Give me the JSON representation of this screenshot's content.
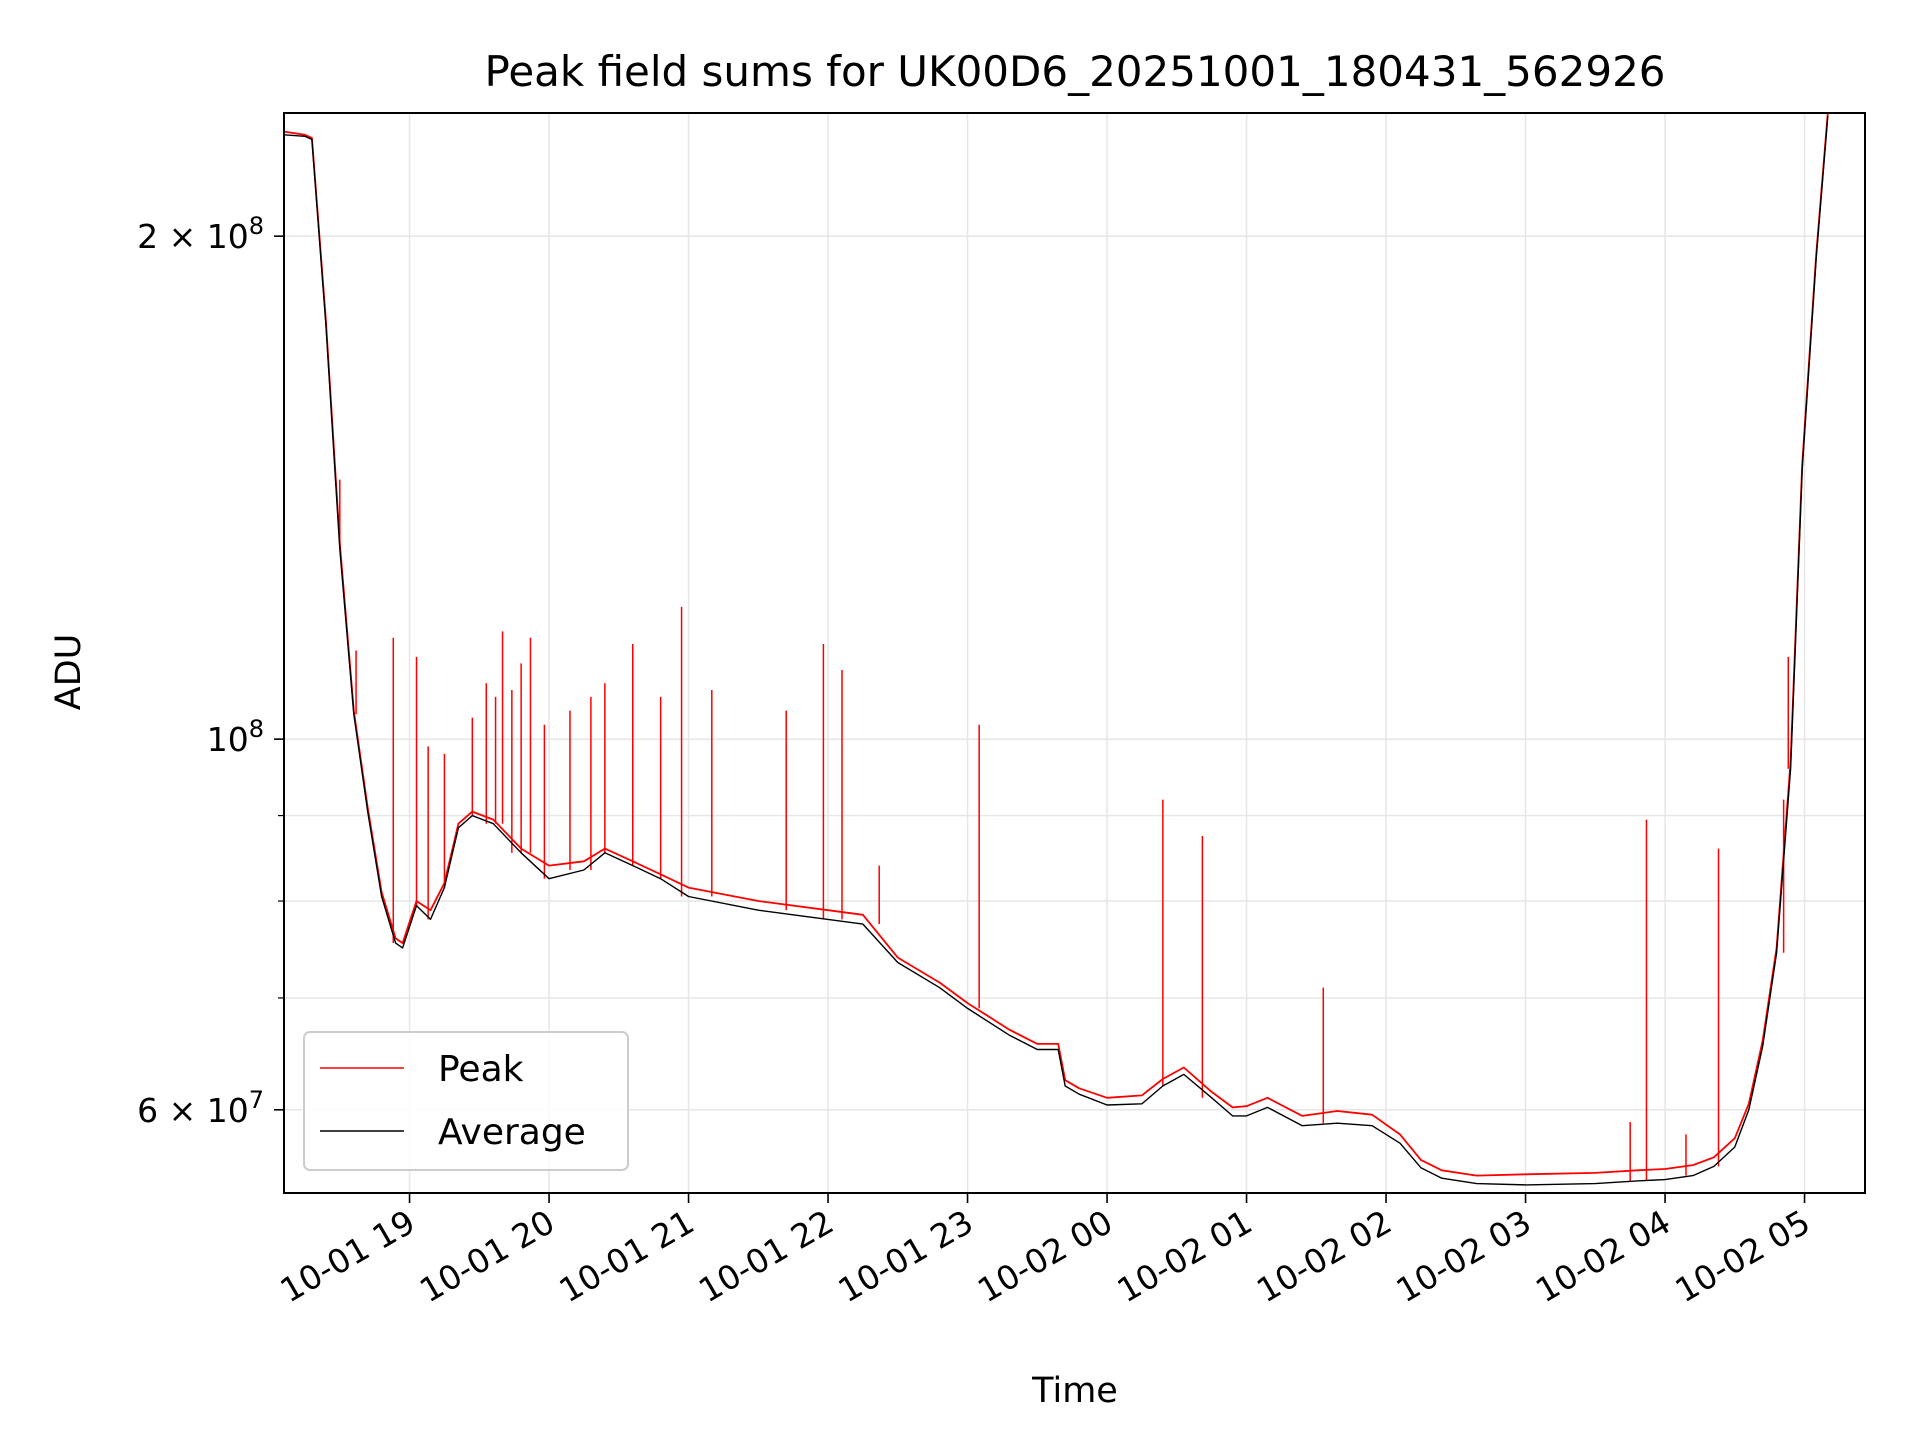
{
  "chart_data": {
    "type": "line",
    "title": "Peak field sums for UK00D6_20251001_180431_562926",
    "xlabel": "Time",
    "ylabel": "ADU",
    "y_scale": "log",
    "xlim": [
      "2025-10-01T18:06",
      "2025-10-02T05:26"
    ],
    "ylim": [
      53500000,
      237000000
    ],
    "grid": true,
    "legend": "lower-left",
    "x_ticks": [
      {
        "t": "2025-10-01T19:00",
        "label": "10-01 19"
      },
      {
        "t": "2025-10-01T20:00",
        "label": "10-01 20"
      },
      {
        "t": "2025-10-01T21:00",
        "label": "10-01 21"
      },
      {
        "t": "2025-10-01T22:00",
        "label": "10-01 22"
      },
      {
        "t": "2025-10-01T23:00",
        "label": "10-01 23"
      },
      {
        "t": "2025-10-02T00:00",
        "label": "10-02 00"
      },
      {
        "t": "2025-10-02T01:00",
        "label": "10-02 01"
      },
      {
        "t": "2025-10-02T02:00",
        "label": "10-02 02"
      },
      {
        "t": "2025-10-02T03:00",
        "label": "10-02 03"
      },
      {
        "t": "2025-10-02T04:00",
        "label": "10-02 04"
      },
      {
        "t": "2025-10-02T05:00",
        "label": "10-02 05"
      }
    ],
    "y_ticks": [
      {
        "value": 60000000,
        "label": "6 × 10^7"
      },
      {
        "value": 100000000,
        "label": "10^8"
      },
      {
        "value": 200000000,
        "label": "2 × 10^8"
      }
    ],
    "y_minor_ticks": [
      70000000,
      80000000,
      90000000
    ],
    "series": [
      {
        "name": "Peak",
        "color": "#ff0000",
        "x": [
          "2025-10-01T18:06",
          "2025-10-01T18:15",
          "2025-10-01T18:18",
          "2025-10-01T18:24",
          "2025-10-01T18:30",
          "2025-10-01T18:36",
          "2025-10-01T18:42",
          "2025-10-01T18:48",
          "2025-10-01T18:54",
          "2025-10-01T18:57",
          "2025-10-01T19:03",
          "2025-10-01T19:09",
          "2025-10-01T19:15",
          "2025-10-01T19:21",
          "2025-10-01T19:27",
          "2025-10-01T19:36",
          "2025-10-01T19:48",
          "2025-10-01T20:00",
          "2025-10-01T20:15",
          "2025-10-01T20:24",
          "2025-10-01T20:36",
          "2025-10-01T20:48",
          "2025-10-01T21:00",
          "2025-10-01T21:30",
          "2025-10-01T22:00",
          "2025-10-01T22:15",
          "2025-10-01T22:30",
          "2025-10-01T22:48",
          "2025-10-01T23:00",
          "2025-10-01T23:18",
          "2025-10-01T23:30",
          "2025-10-01T23:39",
          "2025-10-01T23:42",
          "2025-10-01T23:48",
          "2025-10-02T00:00",
          "2025-10-02T00:15",
          "2025-10-02T00:24",
          "2025-10-02T00:33",
          "2025-10-02T00:45",
          "2025-10-02T00:54",
          "2025-10-02T01:00",
          "2025-10-02T01:09",
          "2025-10-02T01:24",
          "2025-10-02T01:39",
          "2025-10-02T01:54",
          "2025-10-02T02:06",
          "2025-10-02T02:15",
          "2025-10-02T02:24",
          "2025-10-02T02:39",
          "2025-10-02T03:00",
          "2025-10-02T03:30",
          "2025-10-02T03:48",
          "2025-10-02T04:00",
          "2025-10-02T04:12",
          "2025-10-02T04:21",
          "2025-10-02T04:30",
          "2025-10-02T04:36",
          "2025-10-02T04:42",
          "2025-10-02T04:48",
          "2025-10-02T04:54",
          "2025-10-02T04:59",
          "2025-10-02T05:05",
          "2025-10-02T05:10"
        ],
        "y": [
          231000000,
          230000000,
          229000000,
          178000000,
          131000000,
          104000000,
          91000000,
          81000000,
          76000000,
          75500000,
          80000000,
          79000000,
          82000000,
          89000000,
          90500000,
          89500000,
          86000000,
          84000000,
          84500000,
          86000000,
          84500000,
          83000000,
          81500000,
          80000000,
          79000000,
          78500000,
          74000000,
          71500000,
          69500000,
          67000000,
          65700000,
          65700000,
          62500000,
          61800000,
          61000000,
          61200000,
          62600000,
          63600000,
          61500000,
          60200000,
          60300000,
          61000000,
          59500000,
          59900000,
          59600000,
          58000000,
          56000000,
          55200000,
          54800000,
          54900000,
          55000000,
          55200000,
          55300000,
          55600000,
          56200000,
          57700000,
          60500000,
          66000000,
          75000000,
          97000000,
          146000000,
          195000000,
          237000000
        ]
      },
      {
        "name": "Average",
        "color": "#000000",
        "x": [
          "2025-10-01T18:06",
          "2025-10-01T18:15",
          "2025-10-01T18:18",
          "2025-10-01T18:24",
          "2025-10-01T18:30",
          "2025-10-01T18:36",
          "2025-10-01T18:42",
          "2025-10-01T18:48",
          "2025-10-01T18:54",
          "2025-10-01T18:57",
          "2025-10-01T19:03",
          "2025-10-01T19:09",
          "2025-10-01T19:15",
          "2025-10-01T19:21",
          "2025-10-01T19:27",
          "2025-10-01T19:36",
          "2025-10-01T19:48",
          "2025-10-01T20:00",
          "2025-10-01T20:15",
          "2025-10-01T20:24",
          "2025-10-01T20:36",
          "2025-10-01T20:48",
          "2025-10-01T21:00",
          "2025-10-01T21:30",
          "2025-10-01T22:00",
          "2025-10-01T22:15",
          "2025-10-01T22:30",
          "2025-10-01T22:48",
          "2025-10-01T23:00",
          "2025-10-01T23:18",
          "2025-10-01T23:30",
          "2025-10-01T23:39",
          "2025-10-01T23:42",
          "2025-10-01T23:48",
          "2025-10-02T00:00",
          "2025-10-02T00:15",
          "2025-10-02T00:24",
          "2025-10-02T00:33",
          "2025-10-02T00:45",
          "2025-10-02T00:54",
          "2025-10-02T01:00",
          "2025-10-02T01:09",
          "2025-10-02T01:24",
          "2025-10-02T01:39",
          "2025-10-02T01:54",
          "2025-10-02T02:06",
          "2025-10-02T02:15",
          "2025-10-02T02:24",
          "2025-10-02T02:39",
          "2025-10-02T03:00",
          "2025-10-02T03:30",
          "2025-10-02T03:48",
          "2025-10-02T04:00",
          "2025-10-02T04:12",
          "2025-10-02T04:21",
          "2025-10-02T04:30",
          "2025-10-02T04:36",
          "2025-10-02T04:42",
          "2025-10-02T04:48",
          "2025-10-02T04:54",
          "2025-10-02T04:59",
          "2025-10-02T05:05",
          "2025-10-02T05:10"
        ],
        "y": [
          230000000,
          229500000,
          228500000,
          177000000,
          130000000,
          103500000,
          90500000,
          80500000,
          75500000,
          75000000,
          79500000,
          78000000,
          81500000,
          88500000,
          90000000,
          89000000,
          85500000,
          82500000,
          83500000,
          85500000,
          84000000,
          82500000,
          80500000,
          79000000,
          78000000,
          77500000,
          73500000,
          71000000,
          69000000,
          66500000,
          65200000,
          65200000,
          62000000,
          61300000,
          60400000,
          60500000,
          62000000,
          63000000,
          61000000,
          59500000,
          59500000,
          60200000,
          58700000,
          58900000,
          58700000,
          57300000,
          55400000,
          54600000,
          54200000,
          54100000,
          54200000,
          54400000,
          54500000,
          54800000,
          55500000,
          57000000,
          60000000,
          65500000,
          74500000,
          96000000,
          145000000,
          194000000,
          236000000
        ]
      }
    ],
    "spikes": [
      {
        "x": "2025-10-01T18:24",
        "y": 178000000
      },
      {
        "x": "2025-10-01T18:30",
        "y": 143000000
      },
      {
        "x": "2025-10-01T18:37",
        "y": 113000000
      },
      {
        "x": "2025-10-01T18:53",
        "y": 115000000
      },
      {
        "x": "2025-10-01T19:03",
        "y": 112000000
      },
      {
        "x": "2025-10-01T19:08",
        "y": 99000000
      },
      {
        "x": "2025-10-01T19:15",
        "y": 98000000
      },
      {
        "x": "2025-10-01T19:27",
        "y": 103000000
      },
      {
        "x": "2025-10-01T19:33",
        "y": 108000000
      },
      {
        "x": "2025-10-01T19:37",
        "y": 106000000
      },
      {
        "x": "2025-10-01T19:40",
        "y": 116000000
      },
      {
        "x": "2025-10-01T19:44",
        "y": 107000000
      },
      {
        "x": "2025-10-01T19:48",
        "y": 111000000
      },
      {
        "x": "2025-10-01T19:52",
        "y": 115000000
      },
      {
        "x": "2025-10-01T19:58",
        "y": 102000000
      },
      {
        "x": "2025-10-01T20:09",
        "y": 104000000
      },
      {
        "x": "2025-10-01T20:18",
        "y": 106000000
      },
      {
        "x": "2025-10-01T20:24",
        "y": 108000000
      },
      {
        "x": "2025-10-01T20:36",
        "y": 114000000
      },
      {
        "x": "2025-10-01T20:48",
        "y": 106000000
      },
      {
        "x": "2025-10-01T20:57",
        "y": 120000000
      },
      {
        "x": "2025-10-01T21:10",
        "y": 107000000
      },
      {
        "x": "2025-10-01T21:42",
        "y": 104000000
      },
      {
        "x": "2025-10-01T21:58",
        "y": 114000000
      },
      {
        "x": "2025-10-01T22:06",
        "y": 110000000
      },
      {
        "x": "2025-10-01T22:22",
        "y": 84000000
      },
      {
        "x": "2025-10-01T23:05",
        "y": 102000000
      },
      {
        "x": "2025-10-02T00:24",
        "y": 92000000
      },
      {
        "x": "2025-10-02T00:41",
        "y": 87500000
      },
      {
        "x": "2025-10-02T01:33",
        "y": 71000000
      },
      {
        "x": "2025-10-02T03:45",
        "y": 59000000
      },
      {
        "x": "2025-10-02T03:52",
        "y": 89500000
      },
      {
        "x": "2025-10-02T04:09",
        "y": 58000000
      },
      {
        "x": "2025-10-02T04:23",
        "y": 86000000
      },
      {
        "x": "2025-10-02T04:51",
        "y": 92000000
      },
      {
        "x": "2025-10-02T04:53",
        "y": 112000000
      }
    ]
  }
}
